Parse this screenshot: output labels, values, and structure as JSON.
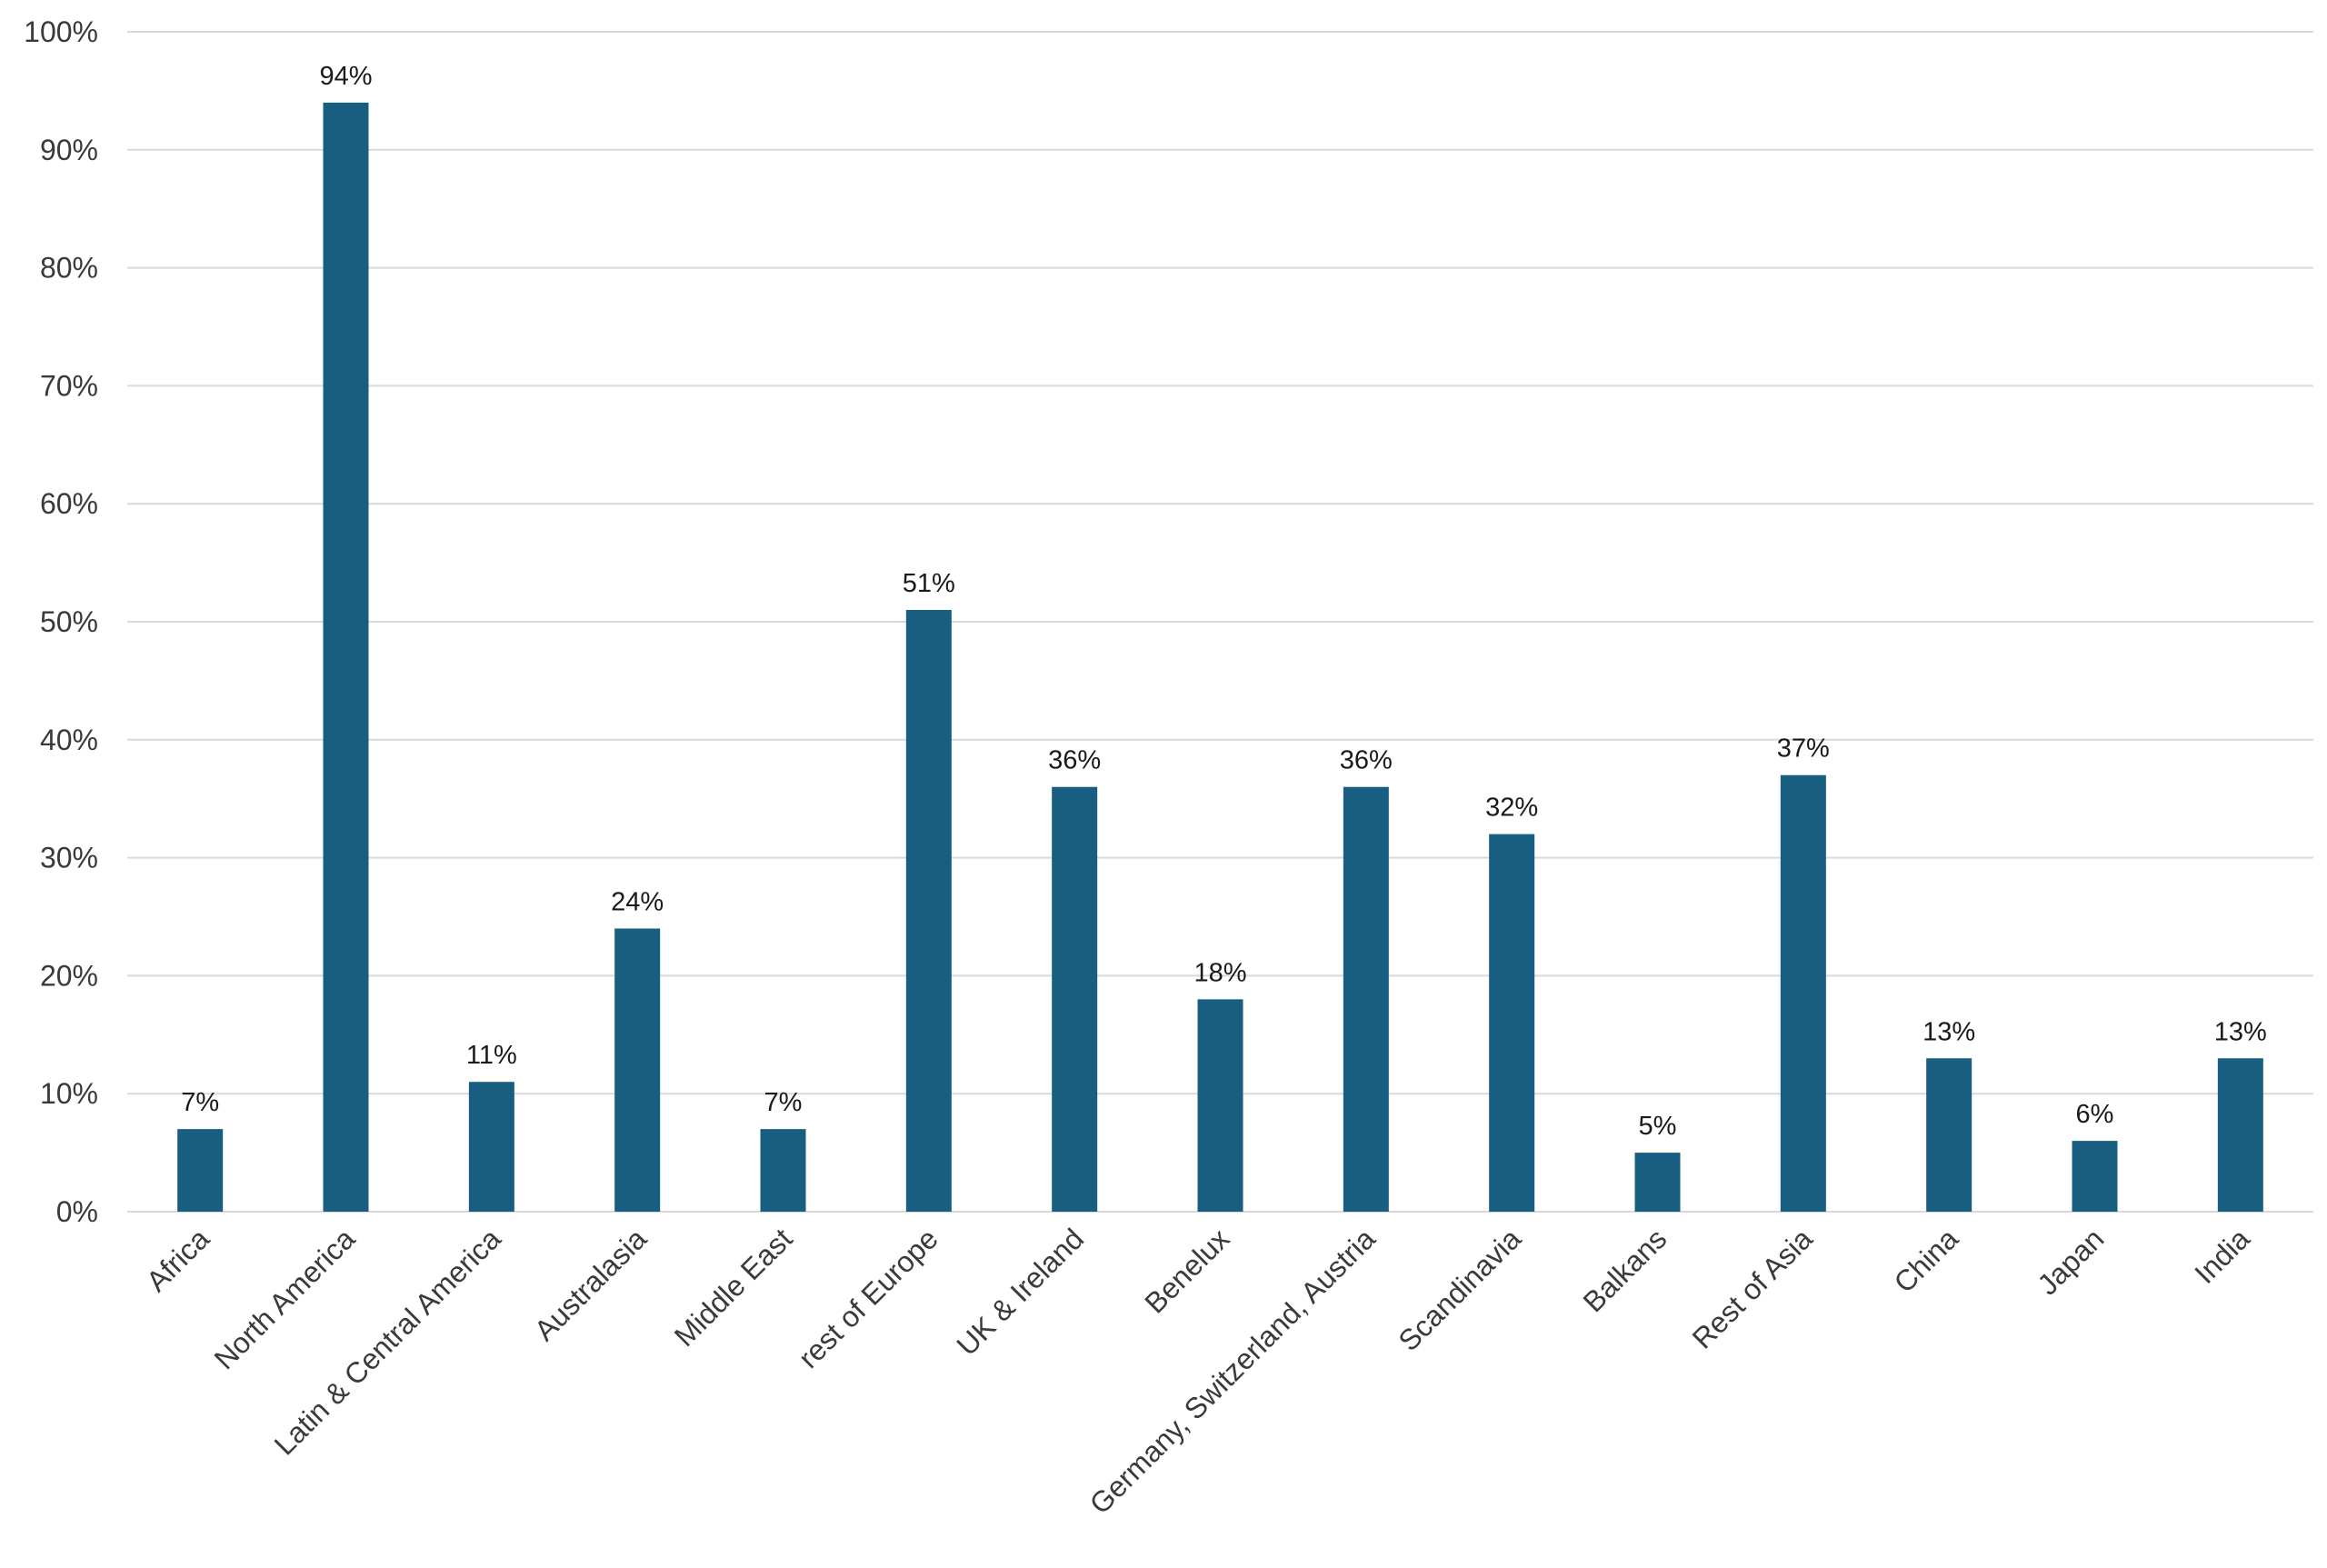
{
  "chart_data": {
    "type": "bar",
    "title": "",
    "xlabel": "",
    "ylabel": "",
    "ylim": [
      0,
      100
    ],
    "y_ticks": [
      "0%",
      "10%",
      "20%",
      "30%",
      "40%",
      "50%",
      "60%",
      "70%",
      "80%",
      "90%",
      "100%"
    ],
    "y_tick_values": [
      0,
      10,
      20,
      30,
      40,
      50,
      60,
      70,
      80,
      90,
      100
    ],
    "grid": true,
    "legend": "none",
    "bar_color": "#185e80",
    "grid_color": "#d9d9d9",
    "categories": [
      "Africa",
      "North America",
      "Latin & Central America",
      "Australasia",
      "Middle East",
      "rest of Europe",
      "UK & Ireland",
      "Benelux",
      "Germany, Switzerland, Austria",
      "Scandinavia",
      "Balkans",
      "Rest of Asia",
      "China",
      "Japan",
      "India"
    ],
    "values": [
      7,
      94,
      11,
      24,
      7,
      51,
      36,
      18,
      36,
      32,
      5,
      37,
      13,
      6,
      13
    ],
    "data_labels": [
      "7%",
      "94%",
      "11%",
      "24%",
      "7%",
      "51%",
      "36%",
      "18%",
      "36%",
      "32%",
      "5%",
      "37%",
      "13%",
      "6%",
      "13%"
    ]
  }
}
